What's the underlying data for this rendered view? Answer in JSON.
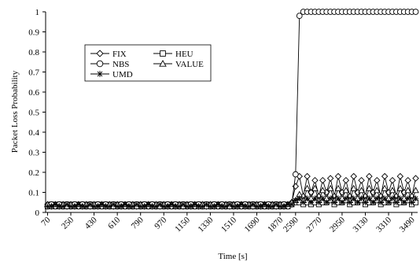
{
  "chart_data": {
    "type": "line",
    "title": "",
    "xlabel": "Time [s]",
    "ylabel": "Packet Loss Probability",
    "ylim": [
      0,
      1
    ],
    "yticks": [
      "0",
      "0.1",
      "0.2",
      "0.3",
      "0.4",
      "0.5",
      "0.6",
      "0.7",
      "0.8",
      "0.9",
      "1"
    ],
    "categories": [
      "70",
      "100",
      "130",
      "160",
      "190",
      "220",
      "250",
      "280",
      "310",
      "340",
      "370",
      "400",
      "430",
      "460",
      "490",
      "520",
      "550",
      "580",
      "610",
      "640",
      "670",
      "700",
      "730",
      "760",
      "790",
      "820",
      "850",
      "880",
      "910",
      "940",
      "970",
      "1000",
      "1030",
      "1060",
      "1090",
      "1120",
      "1150",
      "1180",
      "1210",
      "1240",
      "1270",
      "1300",
      "1330",
      "1360",
      "1390",
      "1420",
      "1450",
      "1480",
      "1510",
      "1540",
      "1570",
      "1600",
      "1630",
      "1660",
      "1690",
      "1720",
      "1750",
      "1780",
      "1810",
      "1840",
      "1870",
      "1900",
      "1930",
      "1960",
      "2590",
      "2620",
      "2650",
      "2680",
      "2710",
      "2740",
      "2770",
      "2800",
      "2830",
      "2860",
      "2890",
      "2920",
      "2950",
      "2980",
      "3010",
      "3040",
      "3070",
      "3100",
      "3130",
      "3160",
      "3190",
      "3220",
      "3250",
      "3280",
      "3310",
      "3340",
      "3370",
      "3400",
      "3430",
      "3460",
      "3490",
      "3520"
    ],
    "tick_labels": [
      "70",
      "250",
      "430",
      "610",
      "790",
      "970",
      "1150",
      "1330",
      "1510",
      "1690",
      "1870",
      "2590",
      "2770",
      "2950",
      "3130",
      "3310",
      "3490"
    ],
    "legend_placement": "upper-left",
    "series": [
      {
        "name": "FIX",
        "marker": "diamond",
        "values": [
          0.04,
          0.03,
          0.04,
          0.03,
          0.04,
          0.03,
          0.04,
          0.03,
          0.04,
          0.03,
          0.04,
          0.03,
          0.04,
          0.03,
          0.04,
          0.03,
          0.04,
          0.03,
          0.04,
          0.03,
          0.04,
          0.03,
          0.04,
          0.03,
          0.04,
          0.03,
          0.04,
          0.03,
          0.04,
          0.03,
          0.04,
          0.03,
          0.04,
          0.03,
          0.04,
          0.03,
          0.04,
          0.03,
          0.04,
          0.03,
          0.04,
          0.03,
          0.04,
          0.03,
          0.04,
          0.03,
          0.04,
          0.03,
          0.04,
          0.03,
          0.04,
          0.03,
          0.04,
          0.03,
          0.04,
          0.03,
          0.04,
          0.03,
          0.04,
          0.03,
          0.04,
          0.03,
          0.04,
          0.05,
          0.13,
          0.18,
          0.08,
          0.18,
          0.1,
          0.16,
          0.08,
          0.16,
          0.1,
          0.17,
          0.08,
          0.18,
          0.1,
          0.16,
          0.08,
          0.18,
          0.1,
          0.16,
          0.08,
          0.18,
          0.1,
          0.16,
          0.08,
          0.18,
          0.1,
          0.16,
          0.08,
          0.18,
          0.1,
          0.16,
          0.08,
          0.17
        ]
      },
      {
        "name": "HEU",
        "marker": "square",
        "values": [
          0.03,
          0.04,
          0.03,
          0.04,
          0.03,
          0.04,
          0.03,
          0.04,
          0.03,
          0.04,
          0.03,
          0.04,
          0.03,
          0.04,
          0.03,
          0.04,
          0.03,
          0.04,
          0.03,
          0.04,
          0.03,
          0.04,
          0.03,
          0.04,
          0.03,
          0.04,
          0.03,
          0.04,
          0.03,
          0.04,
          0.03,
          0.04,
          0.03,
          0.04,
          0.03,
          0.04,
          0.03,
          0.04,
          0.03,
          0.04,
          0.03,
          0.04,
          0.03,
          0.04,
          0.03,
          0.04,
          0.03,
          0.04,
          0.03,
          0.04,
          0.03,
          0.04,
          0.03,
          0.04,
          0.03,
          0.04,
          0.03,
          0.04,
          0.03,
          0.04,
          0.03,
          0.04,
          0.03,
          0.04,
          0.05,
          0.05,
          0.04,
          0.05,
          0.04,
          0.05,
          0.04,
          0.05,
          0.05,
          0.06,
          0.04,
          0.05,
          0.05,
          0.06,
          0.04,
          0.05,
          0.05,
          0.06,
          0.04,
          0.05,
          0.05,
          0.06,
          0.04,
          0.05,
          0.05,
          0.06,
          0.04,
          0.05,
          0.05,
          0.06,
          0.04,
          0.05
        ]
      },
      {
        "name": "NBS",
        "marker": "circle",
        "values": [
          0.03,
          0.04,
          0.03,
          0.04,
          0.03,
          0.04,
          0.03,
          0.04,
          0.03,
          0.04,
          0.03,
          0.04,
          0.03,
          0.04,
          0.03,
          0.04,
          0.03,
          0.04,
          0.03,
          0.04,
          0.03,
          0.04,
          0.03,
          0.04,
          0.03,
          0.04,
          0.03,
          0.04,
          0.03,
          0.04,
          0.03,
          0.04,
          0.03,
          0.04,
          0.03,
          0.04,
          0.03,
          0.04,
          0.03,
          0.04,
          0.03,
          0.04,
          0.03,
          0.04,
          0.03,
          0.04,
          0.03,
          0.04,
          0.03,
          0.04,
          0.03,
          0.04,
          0.03,
          0.04,
          0.03,
          0.04,
          0.03,
          0.04,
          0.03,
          0.04,
          0.03,
          0.04,
          0.03,
          0.04,
          0.19,
          0.98,
          1,
          1,
          1,
          1,
          1,
          1,
          1,
          1,
          1,
          1,
          1,
          1,
          1,
          1,
          1,
          1,
          1,
          1,
          1,
          1,
          1,
          1,
          1,
          1,
          1,
          1,
          1,
          1,
          1,
          1
        ]
      },
      {
        "name": "VALUE",
        "marker": "triangle",
        "values": [
          0.04,
          0.03,
          0.04,
          0.03,
          0.04,
          0.03,
          0.04,
          0.03,
          0.04,
          0.03,
          0.04,
          0.03,
          0.04,
          0.03,
          0.04,
          0.03,
          0.04,
          0.03,
          0.04,
          0.03,
          0.04,
          0.03,
          0.04,
          0.03,
          0.04,
          0.03,
          0.04,
          0.03,
          0.04,
          0.03,
          0.04,
          0.03,
          0.04,
          0.03,
          0.04,
          0.03,
          0.04,
          0.03,
          0.04,
          0.03,
          0.04,
          0.03,
          0.04,
          0.03,
          0.04,
          0.03,
          0.04,
          0.03,
          0.04,
          0.03,
          0.04,
          0.03,
          0.04,
          0.03,
          0.04,
          0.03,
          0.04,
          0.03,
          0.04,
          0.03,
          0.04,
          0.03,
          0.04,
          0.05,
          0.06,
          0.09,
          0.06,
          0.12,
          0.07,
          0.12,
          0.06,
          0.11,
          0.07,
          0.12,
          0.06,
          0.12,
          0.07,
          0.11,
          0.06,
          0.12,
          0.07,
          0.11,
          0.06,
          0.12,
          0.07,
          0.11,
          0.06,
          0.12,
          0.07,
          0.11,
          0.06,
          0.12,
          0.07,
          0.11,
          0.06,
          0.11
        ]
      },
      {
        "name": "UMD",
        "marker": "star",
        "values": [
          0.03,
          0.03,
          0.04,
          0.03,
          0.03,
          0.04,
          0.03,
          0.03,
          0.04,
          0.03,
          0.03,
          0.04,
          0.03,
          0.03,
          0.04,
          0.03,
          0.03,
          0.04,
          0.03,
          0.03,
          0.04,
          0.03,
          0.03,
          0.04,
          0.03,
          0.03,
          0.04,
          0.03,
          0.03,
          0.04,
          0.03,
          0.03,
          0.04,
          0.03,
          0.03,
          0.04,
          0.03,
          0.03,
          0.04,
          0.03,
          0.03,
          0.04,
          0.03,
          0.03,
          0.04,
          0.03,
          0.03,
          0.04,
          0.03,
          0.03,
          0.04,
          0.03,
          0.03,
          0.04,
          0.03,
          0.03,
          0.04,
          0.03,
          0.03,
          0.04,
          0.03,
          0.03,
          0.04,
          0.04,
          0.06,
          0.07,
          0.05,
          0.07,
          0.05,
          0.07,
          0.05,
          0.07,
          0.05,
          0.07,
          0.05,
          0.07,
          0.05,
          0.07,
          0.05,
          0.07,
          0.05,
          0.07,
          0.05,
          0.07,
          0.05,
          0.07,
          0.05,
          0.07,
          0.05,
          0.07,
          0.05,
          0.07,
          0.05,
          0.07,
          0.05,
          0.07
        ]
      }
    ]
  }
}
